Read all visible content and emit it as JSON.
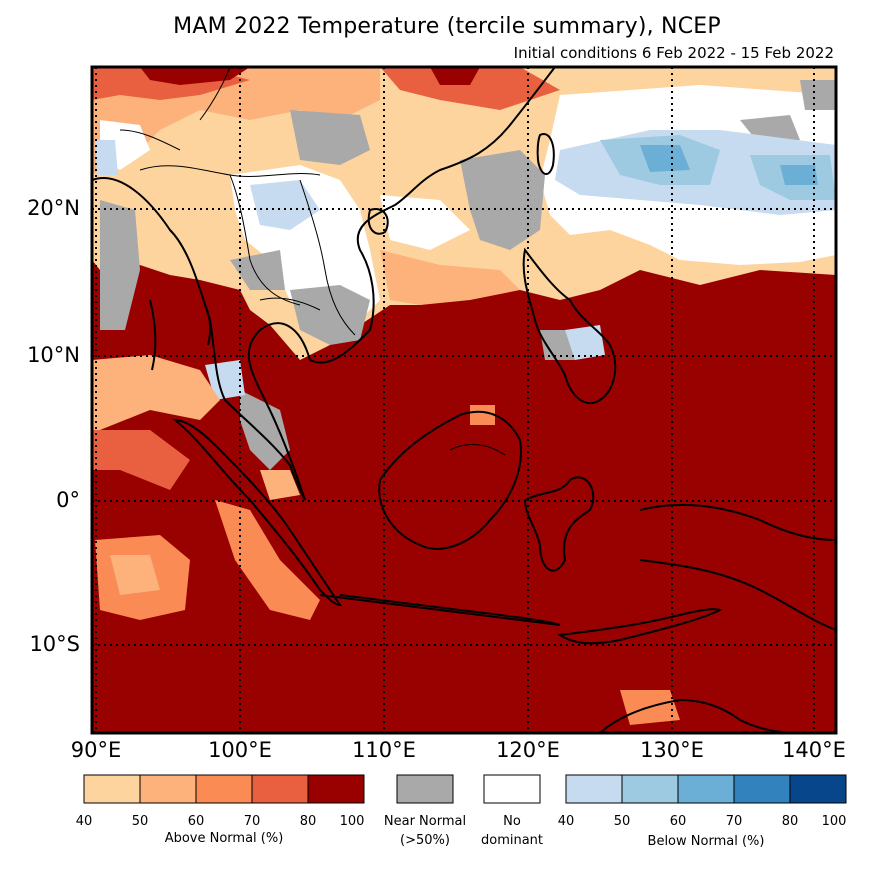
{
  "title": "MAM 2022 Temperature (tercile summary), NCEP",
  "subtitle": "Initial conditions 6 Feb 2022 - 15 Feb 2022",
  "map": {
    "lon_range": [
      90,
      141.5
    ],
    "lat_range": [
      -16.5,
      30
    ],
    "lat_labels": [
      {
        "value": 20,
        "text": "20°N"
      },
      {
        "value": 10,
        "text": "10°N"
      },
      {
        "value": 0,
        "text": "0°"
      },
      {
        "value": -10,
        "text": "10°S"
      }
    ],
    "lon_labels": [
      {
        "value": 90,
        "text": "90°E"
      },
      {
        "value": 100,
        "text": "100°E"
      },
      {
        "value": 110,
        "text": "110°E"
      },
      {
        "value": 120,
        "text": "120°E"
      },
      {
        "value": 130,
        "text": "130°E"
      },
      {
        "value": 140,
        "text": "140°E"
      }
    ],
    "gridlines": "dotted",
    "dominant_category": "Above Normal 80-100 over most of the domain"
  },
  "legend": {
    "above_normal": {
      "caption": "Above Normal (%)",
      "ticks": [
        "40",
        "50",
        "60",
        "70",
        "80",
        "100"
      ],
      "colors": [
        "#fdd49e",
        "#fcb27a",
        "#fa8b55",
        "#e8603f",
        "#990000"
      ]
    },
    "near_normal": {
      "label_line1": "Near Normal",
      "label_line2": "(>50%)",
      "color": "#a9a9a9"
    },
    "no_dominant": {
      "label_line1": "No",
      "label_line2": "dominant",
      "color": "#ffffff"
    },
    "below_normal": {
      "caption": "Below Normal (%)",
      "ticks": [
        "40",
        "50",
        "60",
        "70",
        "80",
        "100"
      ],
      "colors": [
        "#c6dbef",
        "#9ecae1",
        "#6baed6",
        "#3182bd",
        "#08468c"
      ]
    }
  }
}
